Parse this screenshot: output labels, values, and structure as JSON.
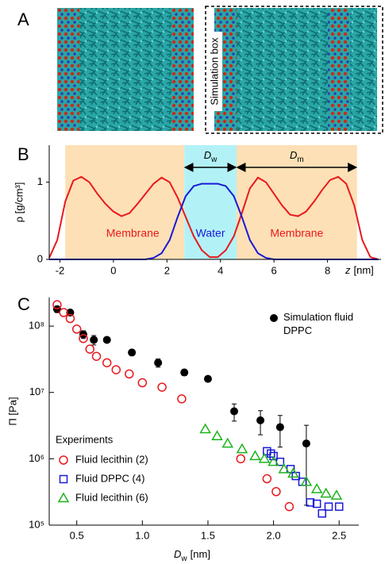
{
  "panel_a": {
    "label": "A",
    "box_label": "Simulation box"
  },
  "chart_data": [
    {
      "type": "line",
      "panel_label": "B",
      "ylabel": "ρ [g/cm³]",
      "xlabel": {
        "main": "z",
        "rest": "[nm]"
      },
      "xlim": [
        -2.4,
        10
      ],
      "ylim": [
        0,
        1.48
      ],
      "xticks": [
        -2,
        0,
        2,
        4,
        6,
        8
      ],
      "yticks": [
        0,
        1
      ],
      "regions": [
        {
          "name": "Membrane",
          "color": "#fde0b6",
          "x": [
            -1.8,
            2.65
          ]
        },
        {
          "name": "Water",
          "color": "#b2f2f6",
          "x": [
            2.65,
            4.6
          ]
        },
        {
          "name": "Membrane",
          "color": "#fde0b6",
          "x": [
            4.6,
            9.1
          ]
        }
      ],
      "spans": [
        {
          "main": "D",
          "sub": "w",
          "x": [
            2.65,
            4.6
          ]
        },
        {
          "main": "D",
          "sub": "m",
          "x": [
            4.6,
            9.1
          ]
        }
      ],
      "x": [
        -2.4,
        -2.1,
        -1.8,
        -1.5,
        -1.2,
        -0.9,
        -0.6,
        -0.3,
        0,
        0.3,
        0.6,
        0.9,
        1.2,
        1.5,
        1.8,
        2.1,
        2.4,
        2.7,
        3.0,
        3.3,
        3.6,
        3.9,
        4.2,
        4.5,
        4.8,
        5.1,
        5.4,
        5.7,
        6.0,
        6.3,
        6.6,
        6.9,
        7.2,
        7.5,
        7.8,
        8.1,
        8.4,
        8.7,
        9.0,
        9.3,
        9.6,
        9.9
      ],
      "series": [
        {
          "color": "#e8191e",
          "values": [
            0.02,
            0.25,
            0.75,
            1.02,
            1.07,
            1.0,
            0.85,
            0.72,
            0.62,
            0.56,
            0.6,
            0.72,
            0.85,
            0.98,
            1.06,
            1.0,
            0.8,
            0.55,
            0.3,
            0.12,
            0.03,
            0.03,
            0.12,
            0.3,
            0.6,
            0.92,
            1.06,
            1.0,
            0.85,
            0.7,
            0.58,
            0.56,
            0.62,
            0.75,
            0.9,
            1.03,
            1.07,
            0.98,
            0.7,
            0.25,
            0.03,
            0
          ]
        },
        {
          "color": "#1a1ad6",
          "values": [
            0,
            0,
            0,
            0,
            0,
            0,
            0,
            0,
            0,
            0,
            0,
            0,
            0,
            0.02,
            0.08,
            0.25,
            0.55,
            0.82,
            0.95,
            0.98,
            0.98,
            0.98,
            0.95,
            0.82,
            0.55,
            0.25,
            0.08,
            0.02,
            0,
            0,
            0,
            0,
            0,
            0,
            0,
            0,
            0,
            0,
            0,
            0,
            0,
            0
          ]
        }
      ]
    },
    {
      "type": "scatter",
      "panel_label": "C",
      "log_y": true,
      "ylabel": "Π [Pa]",
      "xlabel": {
        "main": "D",
        "sub": "w",
        "rest": "[nm]"
      },
      "xlim": [
        0.29,
        2.65
      ],
      "ylim": [
        100000,
        270000000
      ],
      "xticks": [
        0.5,
        {
          "value": 1,
          "label": "1.0"
        },
        1.5,
        {
          "value": 2,
          "label": "2.0"
        },
        2.5
      ],
      "yticks": [
        {
          "value": 100000,
          "label": "10⁵"
        },
        {
          "value": 1000000,
          "label": "10⁶"
        },
        {
          "value": 10000000,
          "label": "10⁷"
        },
        {
          "value": 100000000,
          "label": "10⁸"
        }
      ],
      "legend_title": "Experiments",
      "series": [
        {
          "name": "Simulation fluid DPPC",
          "color": "#000000",
          "marker": "circle-filled",
          "x": [
            0.35,
            0.45,
            0.55,
            0.63,
            0.73,
            0.92,
            1.12,
            1.32,
            1.5,
            1.7,
            1.9,
            2.05,
            2.25
          ],
          "values": [
            180000000,
            160000000,
            75000000,
            62000000,
            62000000,
            40000000,
            28000000,
            20000000,
            16000000,
            5200000,
            3800000,
            3000000,
            1700000
          ],
          "errors": [
            20000000,
            15000000,
            10000000,
            10000000,
            5000000,
            4000000,
            4000000,
            2000000,
            1500000,
            1500000,
            1500000,
            1500000,
            1500000
          ]
        },
        {
          "name": "Fluid lecithin (2)",
          "color": "#e8191e",
          "marker": "circle",
          "x": [
            0.35,
            0.4,
            0.45,
            0.5,
            0.55,
            0.6,
            0.65,
            0.73,
            0.8,
            0.9,
            1.0,
            1.15,
            1.3,
            1.75,
            1.95,
            2.02,
            2.12
          ],
          "values": [
            210000000,
            160000000,
            130000000,
            90000000,
            65000000,
            45000000,
            35000000,
            28000000,
            22000000,
            19000000,
            14000000,
            12000000,
            8000000,
            1000000,
            500000,
            320000,
            190000
          ]
        },
        {
          "name": "Fluid DPPC (4)",
          "color": "#1a1ad6",
          "marker": "square",
          "x": [
            1.95,
            1.98,
            2.0,
            2.05,
            2.13,
            2.17,
            2.22,
            2.28,
            2.33,
            2.37,
            2.42,
            2.5
          ],
          "values": [
            1300000,
            1200000,
            1100000,
            900000,
            700000,
            550000,
            450000,
            220000,
            210000,
            150000,
            190000,
            190000
          ]
        },
        {
          "name": "Fluid lecithin (6)",
          "color": "#1db31d",
          "marker": "triangle",
          "x": [
            1.48,
            1.57,
            1.65,
            1.76,
            1.86,
            1.93,
            2.0,
            2.08,
            2.15,
            2.25,
            2.33,
            2.4,
            2.48
          ],
          "values": [
            2800000,
            2200000,
            1700000,
            1400000,
            1100000,
            1000000,
            900000,
            700000,
            600000,
            450000,
            350000,
            300000,
            280000
          ]
        }
      ]
    }
  ]
}
